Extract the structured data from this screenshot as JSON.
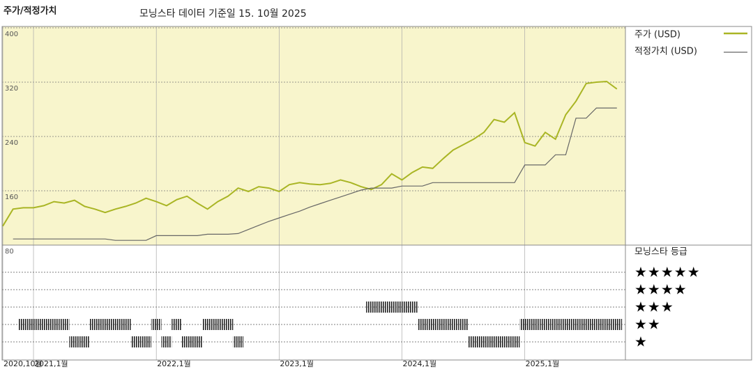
{
  "chart_data": {
    "type": "line",
    "title": "주가/적정가치",
    "subtitle": "모닝스타 데이터 기준일 15. 10월 2025",
    "x": [
      "2020-10",
      "2020-11",
      "2020-12",
      "2021-01",
      "2021-02",
      "2021-03",
      "2021-04",
      "2021-05",
      "2021-06",
      "2021-07",
      "2021-08",
      "2021-09",
      "2021-10",
      "2021-11",
      "2021-12",
      "2022-01",
      "2022-02",
      "2022-03",
      "2022-04",
      "2022-05",
      "2022-06",
      "2022-07",
      "2022-08",
      "2022-09",
      "2022-10",
      "2022-11",
      "2022-12",
      "2023-01",
      "2023-02",
      "2023-03",
      "2023-04",
      "2023-05",
      "2023-06",
      "2023-07",
      "2023-08",
      "2023-09",
      "2023-10",
      "2023-11",
      "2023-12",
      "2024-01",
      "2024-02",
      "2024-03",
      "2024-04",
      "2024-05",
      "2024-06",
      "2024-07",
      "2024-08",
      "2024-09",
      "2024-10",
      "2024-11",
      "2024-12",
      "2025-01",
      "2025-02",
      "2025-03",
      "2025-04",
      "2025-05",
      "2025-06",
      "2025-07",
      "2025-08",
      "2025-09",
      "2025-10"
    ],
    "series": [
      {
        "name": "주가 (USD)",
        "color": "#a9b524",
        "values": [
          108,
          133,
          135,
          135,
          138,
          144,
          142,
          146,
          137,
          133,
          128,
          133,
          137,
          142,
          149,
          144,
          138,
          147,
          152,
          142,
          133,
          144,
          152,
          164,
          159,
          166,
          164,
          159,
          169,
          172,
          170,
          169,
          171,
          176,
          172,
          166,
          162,
          169,
          185,
          176,
          187,
          195,
          193,
          207,
          220,
          228,
          236,
          246,
          265,
          261,
          275,
          231,
          226,
          246,
          236,
          272,
          292,
          318,
          320,
          321,
          310
        ]
      },
      {
        "name": "적정가치 (USD)",
        "color": "#666666",
        "values": [
          null,
          89,
          89,
          89,
          89,
          89,
          89,
          89,
          89,
          89,
          89,
          87,
          87,
          87,
          87,
          94,
          94,
          94,
          94,
          94,
          96,
          96,
          96,
          97,
          103,
          109,
          115,
          120,
          125,
          130,
          136,
          141,
          146,
          151,
          156,
          161,
          164,
          164,
          164,
          167,
          167,
          167,
          172,
          172,
          172,
          172,
          172,
          172,
          172,
          172,
          172,
          198,
          198,
          198,
          213,
          213,
          267,
          267,
          282,
          282,
          282
        ]
      }
    ],
    "ylim": [
      80,
      400
    ],
    "yticks": [
      80,
      160,
      240,
      320,
      400
    ],
    "xticks": [
      {
        "value": "2020-10",
        "label": "2020,10월"
      },
      {
        "value": "2021-01",
        "label": "2021,1월"
      },
      {
        "value": "2022-01",
        "label": "2022,1월"
      },
      {
        "value": "2023-01",
        "label": "2023,1월"
      },
      {
        "value": "2024-01",
        "label": "2024,1월"
      },
      {
        "value": "2025-01",
        "label": "2025,1월"
      }
    ],
    "grid": true,
    "background": "#f8f5cc",
    "ratings": {
      "title": "모닝스타 등급",
      "levels": [
        5,
        4,
        3,
        2,
        1
      ],
      "level_labels": [
        "★★★★★",
        "★★★★",
        "★★★",
        "★★",
        "★"
      ],
      "values": [
        null,
        null,
        2,
        2,
        2,
        2,
        2,
        1,
        1,
        2,
        2,
        2,
        2,
        1,
        1,
        2,
        1,
        2,
        1,
        1,
        2,
        2,
        2,
        1,
        null,
        null,
        null,
        null,
        null,
        null,
        null,
        null,
        null,
        null,
        null,
        null,
        3,
        3,
        3,
        3,
        3,
        2,
        2,
        2,
        2,
        2,
        1,
        1,
        1,
        1,
        1,
        2,
        2,
        2,
        2,
        2,
        2,
        2,
        2,
        2,
        2
      ]
    }
  }
}
